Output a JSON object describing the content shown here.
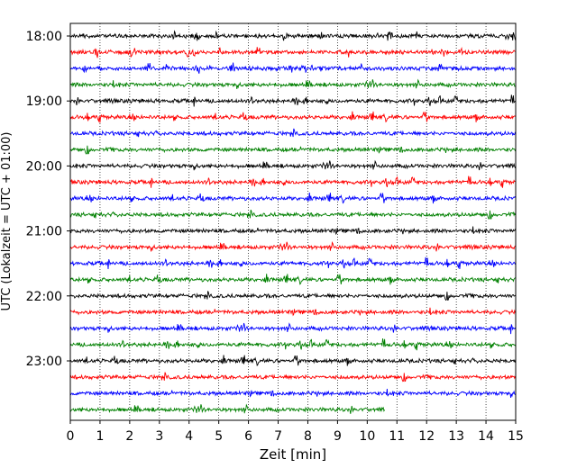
{
  "chart_data": {
    "type": "line",
    "description_kind": "helicorder",
    "xlabel": "Zeit  [min]",
    "ylabel": "UTC (Lokalzeit = UTC + 01:00)",
    "xlim": [
      0,
      15
    ],
    "x_ticks": [
      0,
      1,
      2,
      3,
      4,
      5,
      6,
      7,
      8,
      9,
      10,
      11,
      12,
      13,
      14,
      15
    ],
    "x_grid": "dotted-vertical",
    "y_ticks": [
      {
        "label": "18:00",
        "row": 0
      },
      {
        "label": "19:00",
        "row": 4
      },
      {
        "label": "20:00",
        "row": 8
      },
      {
        "label": "21:00",
        "row": 12
      },
      {
        "label": "22:00",
        "row": 16
      },
      {
        "label": "23:00",
        "row": 20
      }
    ],
    "trace_colors": [
      "#000000",
      "#ff0000",
      "#0000ff",
      "#008000"
    ],
    "series": [
      {
        "start": "18:00",
        "end_minute": 15
      },
      {
        "start": "18:15",
        "end_minute": 15
      },
      {
        "start": "18:30",
        "end_minute": 15
      },
      {
        "start": "18:45",
        "end_minute": 15
      },
      {
        "start": "19:00",
        "end_minute": 15
      },
      {
        "start": "19:15",
        "end_minute": 15
      },
      {
        "start": "19:30",
        "end_minute": 15
      },
      {
        "start": "19:45",
        "end_minute": 15
      },
      {
        "start": "20:00",
        "end_minute": 15
      },
      {
        "start": "20:15",
        "end_minute": 15
      },
      {
        "start": "20:30",
        "end_minute": 15
      },
      {
        "start": "20:45",
        "end_minute": 15
      },
      {
        "start": "21:00",
        "end_minute": 15
      },
      {
        "start": "21:15",
        "end_minute": 15
      },
      {
        "start": "21:30",
        "end_minute": 15
      },
      {
        "start": "21:45",
        "end_minute": 15
      },
      {
        "start": "22:00",
        "end_minute": 15
      },
      {
        "start": "22:15",
        "end_minute": 15
      },
      {
        "start": "22:30",
        "end_minute": 15
      },
      {
        "start": "22:45",
        "end_minute": 15
      },
      {
        "start": "23:00",
        "end_minute": 15
      },
      {
        "start": "23:15",
        "end_minute": 15
      },
      {
        "start": "23:30",
        "end_minute": 15
      },
      {
        "start": "23:45",
        "end_minute": 10.6
      }
    ]
  }
}
